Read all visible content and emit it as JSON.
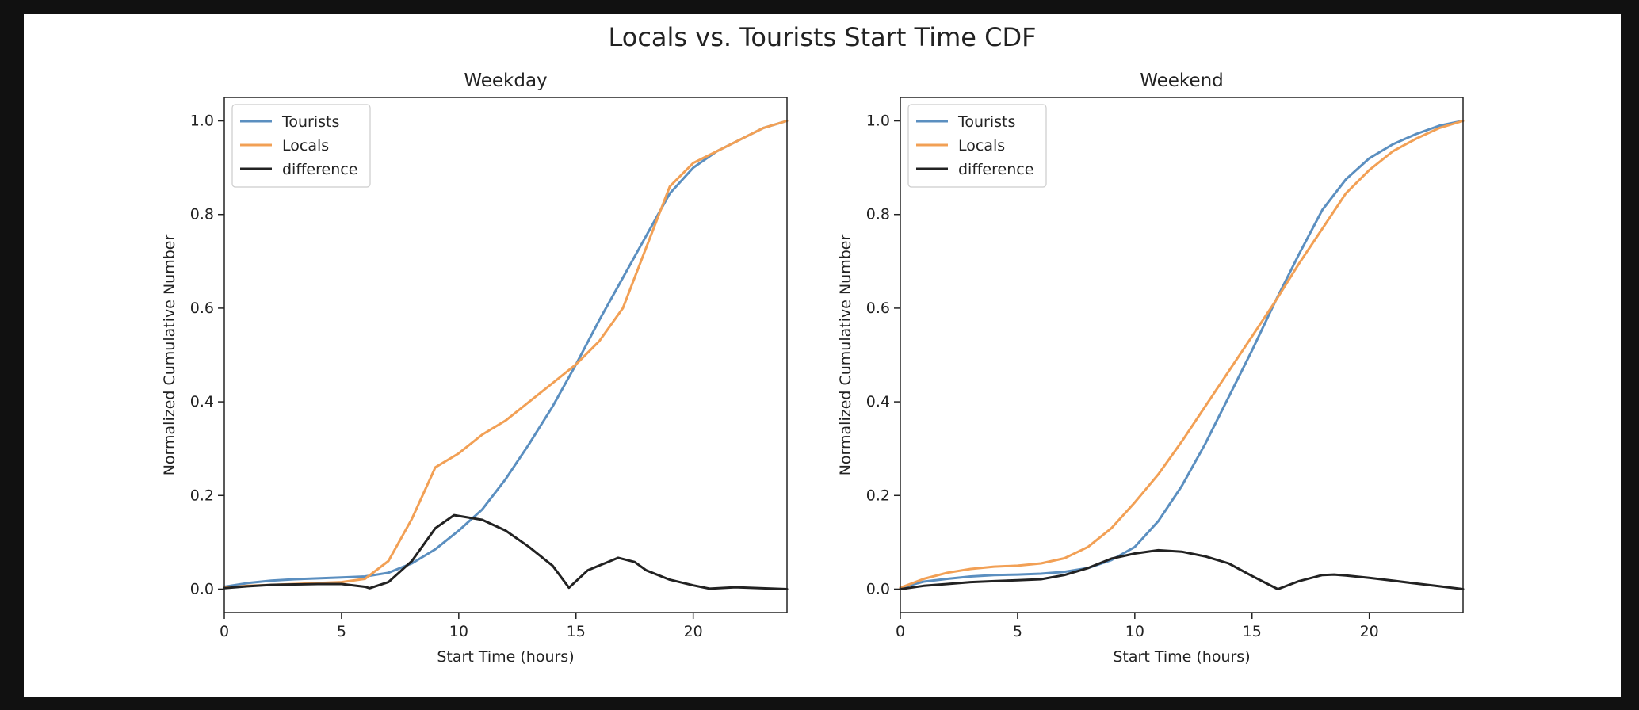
{
  "figure": {
    "suptitle": "Locals vs. Tourists Start Time CDF"
  },
  "colors": {
    "tourists": "#5b8fc0",
    "locals": "#f2a055",
    "difference": "#222222"
  },
  "chart_data": [
    {
      "type": "line",
      "title": "Weekday",
      "xlabel": "Start Time (hours)",
      "ylabel": "Normalized Cumulative Number",
      "xlim": [
        0,
        24
      ],
      "ylim": [
        -0.05,
        1.05
      ],
      "xticks": [
        0,
        5,
        10,
        15,
        20
      ],
      "yticks": [
        0.0,
        0.2,
        0.4,
        0.6,
        0.8,
        1.0
      ],
      "grid": false,
      "legend": "upper-left",
      "series": [
        {
          "name": "Tourists",
          "color": "#5b8fc0",
          "x": [
            0,
            1,
            2,
            3,
            4,
            5,
            6,
            7,
            8,
            9,
            10,
            11,
            12,
            13,
            14,
            15,
            16,
            17,
            18,
            19,
            20,
            21,
            22,
            23,
            24
          ],
          "y": [
            0.005,
            0.013,
            0.018,
            0.021,
            0.023,
            0.025,
            0.027,
            0.035,
            0.055,
            0.085,
            0.125,
            0.17,
            0.235,
            0.31,
            0.39,
            0.48,
            0.575,
            0.665,
            0.755,
            0.845,
            0.9,
            0.935,
            0.96,
            0.985,
            1.0
          ]
        },
        {
          "name": "Locals",
          "color": "#f2a055",
          "x": [
            0,
            1,
            2,
            3,
            4,
            5,
            6,
            7,
            8,
            9,
            10,
            11,
            12,
            13,
            14,
            15,
            16,
            17,
            18,
            19,
            20,
            21,
            22,
            23,
            24
          ],
          "y": [
            0.003,
            0.007,
            0.009,
            0.011,
            0.013,
            0.015,
            0.022,
            0.06,
            0.15,
            0.26,
            0.29,
            0.33,
            0.36,
            0.4,
            0.44,
            0.48,
            0.53,
            0.6,
            0.73,
            0.86,
            0.91,
            0.935,
            0.96,
            0.985,
            1.0
          ]
        },
        {
          "name": "difference",
          "color": "#222222",
          "x": [
            0,
            1,
            2,
            3,
            4,
            5,
            6,
            6.2,
            7,
            8,
            9,
            9.8,
            11,
            12,
            13,
            14,
            14.7,
            15.5,
            16.8,
            17.5,
            18,
            19,
            20,
            20.7,
            21.8,
            24
          ],
          "y": [
            0.002,
            0.006,
            0.009,
            0.01,
            0.011,
            0.011,
            0.005,
            0.002,
            0.015,
            0.06,
            0.13,
            0.158,
            0.148,
            0.125,
            0.09,
            0.05,
            0.003,
            0.04,
            0.067,
            0.058,
            0.04,
            0.02,
            0.008,
            0.001,
            0.004,
            0.0
          ]
        }
      ]
    },
    {
      "type": "line",
      "title": "Weekend",
      "xlabel": "Start Time (hours)",
      "ylabel": "Normalized Cumulative Number",
      "xlim": [
        0,
        24
      ],
      "ylim": [
        -0.05,
        1.05
      ],
      "xticks": [
        0,
        5,
        10,
        15,
        20
      ],
      "yticks": [
        0.0,
        0.2,
        0.4,
        0.6,
        0.8,
        1.0
      ],
      "grid": false,
      "legend": "upper-left",
      "series": [
        {
          "name": "Tourists",
          "color": "#5b8fc0",
          "x": [
            0,
            1,
            2,
            3,
            4,
            5,
            6,
            7,
            8,
            9,
            10,
            11,
            12,
            13,
            14,
            15,
            16,
            17,
            18,
            19,
            20,
            21,
            22,
            23,
            24
          ],
          "y": [
            0.003,
            0.016,
            0.022,
            0.027,
            0.03,
            0.031,
            0.033,
            0.037,
            0.045,
            0.062,
            0.09,
            0.145,
            0.22,
            0.31,
            0.41,
            0.51,
            0.615,
            0.715,
            0.81,
            0.875,
            0.92,
            0.95,
            0.972,
            0.99,
            1.0
          ]
        },
        {
          "name": "Locals",
          "color": "#f2a055",
          "x": [
            0,
            1,
            2,
            3,
            4,
            5,
            6,
            7,
            8,
            9,
            10,
            11,
            12,
            13,
            14,
            15,
            16,
            17,
            18,
            19,
            20,
            21,
            22,
            23,
            24
          ],
          "y": [
            0.003,
            0.022,
            0.035,
            0.043,
            0.048,
            0.05,
            0.055,
            0.066,
            0.09,
            0.13,
            0.185,
            0.245,
            0.315,
            0.39,
            0.465,
            0.54,
            0.615,
            0.695,
            0.77,
            0.845,
            0.895,
            0.935,
            0.962,
            0.985,
            1.0
          ]
        },
        {
          "name": "difference",
          "color": "#222222",
          "x": [
            0,
            1,
            2,
            3,
            4,
            5,
            6,
            7,
            8,
            9,
            10,
            11,
            12,
            13,
            14,
            15,
            16.1,
            17,
            18,
            18.5,
            19,
            20,
            21,
            22,
            23,
            24
          ],
          "y": [
            0.0,
            0.007,
            0.011,
            0.015,
            0.017,
            0.019,
            0.021,
            0.03,
            0.045,
            0.065,
            0.076,
            0.083,
            0.08,
            0.07,
            0.055,
            0.028,
            0.0,
            0.017,
            0.03,
            0.031,
            0.029,
            0.024,
            0.018,
            0.012,
            0.006,
            0.0
          ]
        }
      ]
    }
  ]
}
